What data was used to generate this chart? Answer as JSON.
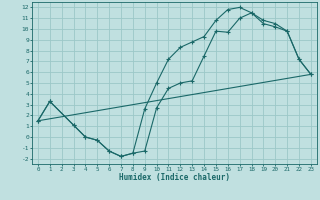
{
  "bg_color": "#c0e0e0",
  "grid_color": "#9cc8c8",
  "line_color": "#1a6868",
  "xlabel": "Humidex (Indice chaleur)",
  "xlim": [
    -0.5,
    23.5
  ],
  "ylim": [
    -2.5,
    12.5
  ],
  "xticks": [
    0,
    1,
    2,
    3,
    4,
    5,
    6,
    7,
    8,
    9,
    10,
    11,
    12,
    13,
    14,
    15,
    16,
    17,
    18,
    19,
    20,
    21,
    22,
    23
  ],
  "yticks": [
    -2,
    -1,
    0,
    1,
    2,
    3,
    4,
    5,
    6,
    7,
    8,
    9,
    10,
    11,
    12
  ],
  "curve1_x": [
    0,
    1,
    3,
    4,
    5,
    6,
    7,
    8,
    9,
    10,
    11,
    12,
    13,
    14,
    15,
    16,
    17,
    18,
    19,
    20,
    21,
    22,
    23
  ],
  "curve1_y": [
    1.5,
    3.3,
    1.1,
    0.0,
    -0.3,
    -1.3,
    -1.8,
    -1.5,
    -1.3,
    2.7,
    4.5,
    5.0,
    5.2,
    7.5,
    9.8,
    9.7,
    11.0,
    11.5,
    10.5,
    10.2,
    9.8,
    7.2,
    5.8
  ],
  "curve2_x": [
    0,
    1,
    3,
    4,
    5,
    6,
    7,
    8,
    9,
    10,
    11,
    12,
    13,
    14,
    15,
    16,
    17,
    18,
    19,
    20,
    21,
    22,
    23
  ],
  "curve2_y": [
    1.5,
    3.3,
    1.1,
    0.0,
    -0.3,
    -1.3,
    -1.8,
    -1.5,
    2.6,
    5.0,
    7.2,
    8.3,
    8.8,
    9.3,
    10.8,
    11.8,
    12.0,
    11.5,
    10.8,
    10.5,
    9.8,
    7.2,
    5.8
  ],
  "curve3_x": [
    0,
    23
  ],
  "curve3_y": [
    1.5,
    5.8
  ]
}
